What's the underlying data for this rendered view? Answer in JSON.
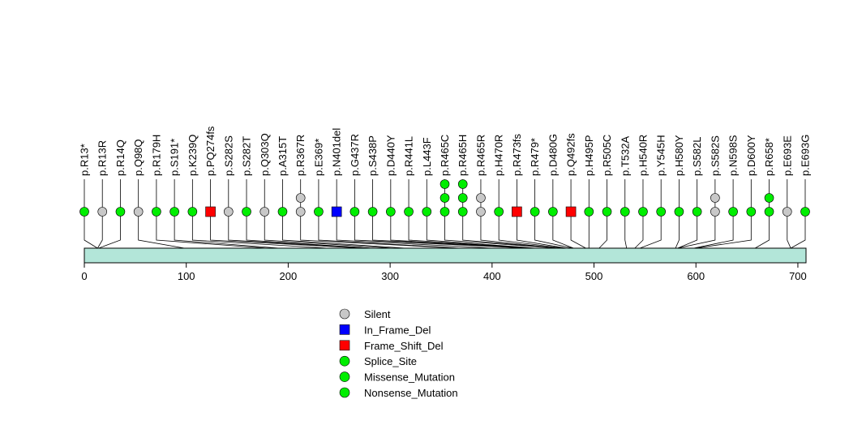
{
  "chart_data": {
    "type": "lollipop",
    "title": "",
    "xlabel": "",
    "ylabel": "",
    "xlim": [
      0,
      708
    ],
    "protein_length": 708,
    "x_ticks": [
      0,
      100,
      200,
      300,
      400,
      500,
      600,
      700
    ],
    "legend": [
      {
        "label": "Silent",
        "color": "#c8c8c8",
        "shape": "circle"
      },
      {
        "label": "In_Frame_Del",
        "color": "#0000ff",
        "shape": "square"
      },
      {
        "label": "Frame_Shift_Del",
        "color": "#ff0000",
        "shape": "square"
      },
      {
        "label": "Splice_Site",
        "color": "#00ee00",
        "shape": "circle"
      },
      {
        "label": "Missense_Mutation",
        "color": "#00ee00",
        "shape": "circle"
      },
      {
        "label": "Nonsense_Mutation",
        "color": "#00ee00",
        "shape": "circle"
      }
    ],
    "mutations": [
      {
        "label": "p.R13*",
        "pos": 13,
        "types": [
          "Nonsense_Mutation"
        ]
      },
      {
        "label": "p.R13R",
        "pos": 13,
        "types": [
          "Silent"
        ]
      },
      {
        "label": "p.R14Q",
        "pos": 14,
        "types": [
          "Missense_Mutation"
        ]
      },
      {
        "label": "p.Q98Q",
        "pos": 98,
        "types": [
          "Silent"
        ]
      },
      {
        "label": "p.R179H",
        "pos": 179,
        "types": [
          "Missense_Mutation"
        ]
      },
      {
        "label": "p.S191*",
        "pos": 191,
        "types": [
          "Nonsense_Mutation"
        ]
      },
      {
        "label": "p.K239Q",
        "pos": 239,
        "types": [
          "Missense_Mutation"
        ]
      },
      {
        "label": "p.PQ274fs",
        "pos": 274,
        "types": [
          "Frame_Shift_Del"
        ]
      },
      {
        "label": "p.S282S",
        "pos": 282,
        "types": [
          "Silent"
        ]
      },
      {
        "label": "p.S282T",
        "pos": 282,
        "types": [
          "Missense_Mutation"
        ]
      },
      {
        "label": "p.Q303Q",
        "pos": 303,
        "types": [
          "Silent"
        ]
      },
      {
        "label": "p.A315T",
        "pos": 315,
        "types": [
          "Missense_Mutation"
        ]
      },
      {
        "label": "p.R367R",
        "pos": 367,
        "types": [
          "Silent",
          "Silent"
        ]
      },
      {
        "label": "p.E369*",
        "pos": 369,
        "types": [
          "Nonsense_Mutation"
        ]
      },
      {
        "label": "p.N401del",
        "pos": 401,
        "types": [
          "In_Frame_Del"
        ]
      },
      {
        "label": "p.G437R",
        "pos": 437,
        "types": [
          "Missense_Mutation"
        ]
      },
      {
        "label": "p.S438P",
        "pos": 438,
        "types": [
          "Missense_Mutation"
        ]
      },
      {
        "label": "p.D440Y",
        "pos": 440,
        "types": [
          "Missense_Mutation"
        ]
      },
      {
        "label": "p.R441L",
        "pos": 441,
        "types": [
          "Missense_Mutation"
        ]
      },
      {
        "label": "p.L443F",
        "pos": 443,
        "types": [
          "Missense_Mutation"
        ]
      },
      {
        "label": "p.R465C",
        "pos": 465,
        "types": [
          "Missense_Mutation",
          "Missense_Mutation",
          "Missense_Mutation"
        ]
      },
      {
        "label": "p.R465H",
        "pos": 465,
        "types": [
          "Missense_Mutation",
          "Missense_Mutation",
          "Missense_Mutation"
        ]
      },
      {
        "label": "p.R465R",
        "pos": 465,
        "types": [
          "Silent",
          "Silent"
        ]
      },
      {
        "label": "p.H470R",
        "pos": 470,
        "types": [
          "Missense_Mutation"
        ]
      },
      {
        "label": "p.R473fs",
        "pos": 473,
        "types": [
          "Frame_Shift_Del"
        ]
      },
      {
        "label": "p.R479*",
        "pos": 479,
        "types": [
          "Nonsense_Mutation"
        ]
      },
      {
        "label": "p.D480G",
        "pos": 480,
        "types": [
          "Missense_Mutation"
        ]
      },
      {
        "label": "p.Q492fs",
        "pos": 492,
        "types": [
          "Frame_Shift_Del"
        ]
      },
      {
        "label": "p.H495P",
        "pos": 495,
        "types": [
          "Missense_Mutation"
        ]
      },
      {
        "label": "p.R505C",
        "pos": 505,
        "types": [
          "Missense_Mutation"
        ]
      },
      {
        "label": "p.T532A",
        "pos": 532,
        "types": [
          "Missense_Mutation"
        ]
      },
      {
        "label": "p.H540R",
        "pos": 540,
        "types": [
          "Missense_Mutation"
        ]
      },
      {
        "label": "p.Y545H",
        "pos": 545,
        "types": [
          "Missense_Mutation"
        ]
      },
      {
        "label": "p.H580Y",
        "pos": 580,
        "types": [
          "Missense_Mutation"
        ]
      },
      {
        "label": "p.S582L",
        "pos": 582,
        "types": [
          "Missense_Mutation"
        ]
      },
      {
        "label": "p.S582S",
        "pos": 582,
        "types": [
          "Silent",
          "Silent"
        ]
      },
      {
        "label": "p.N598S",
        "pos": 598,
        "types": [
          "Missense_Mutation"
        ]
      },
      {
        "label": "p.D600Y",
        "pos": 600,
        "types": [
          "Missense_Mutation"
        ]
      },
      {
        "label": "p.R658*",
        "pos": 658,
        "types": [
          "Nonsense_Mutation",
          "Nonsense_Mutation"
        ]
      },
      {
        "label": "p.E693E",
        "pos": 693,
        "types": [
          "Silent"
        ]
      },
      {
        "label": "p.E693G",
        "pos": 693,
        "types": [
          "Missense_Mutation"
        ]
      }
    ]
  },
  "colors": {
    "domain_fill": "#b3e6d9",
    "line": "#000000"
  }
}
